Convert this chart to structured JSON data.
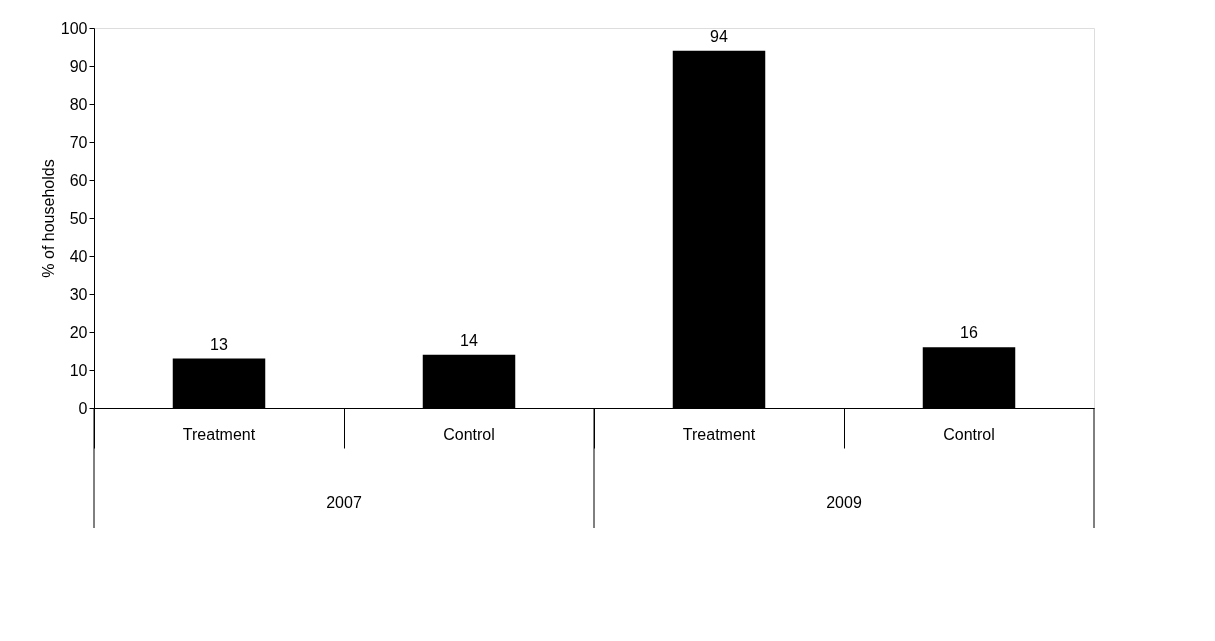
{
  "chart_data": {
    "type": "bar",
    "ylabel": "% of households",
    "categories": [
      "Treatment",
      "Control",
      "Treatment",
      "Control"
    ],
    "values": [
      13,
      14,
      94,
      16
    ],
    "color": "#000000",
    "ylim": [
      0,
      100
    ],
    "yticks": [
      0,
      10,
      20,
      30,
      40,
      50,
      60,
      70,
      80,
      90,
      100
    ],
    "data_labels": true,
    "grid": false,
    "annotations": [
      "2007",
      "2009"
    ]
  }
}
